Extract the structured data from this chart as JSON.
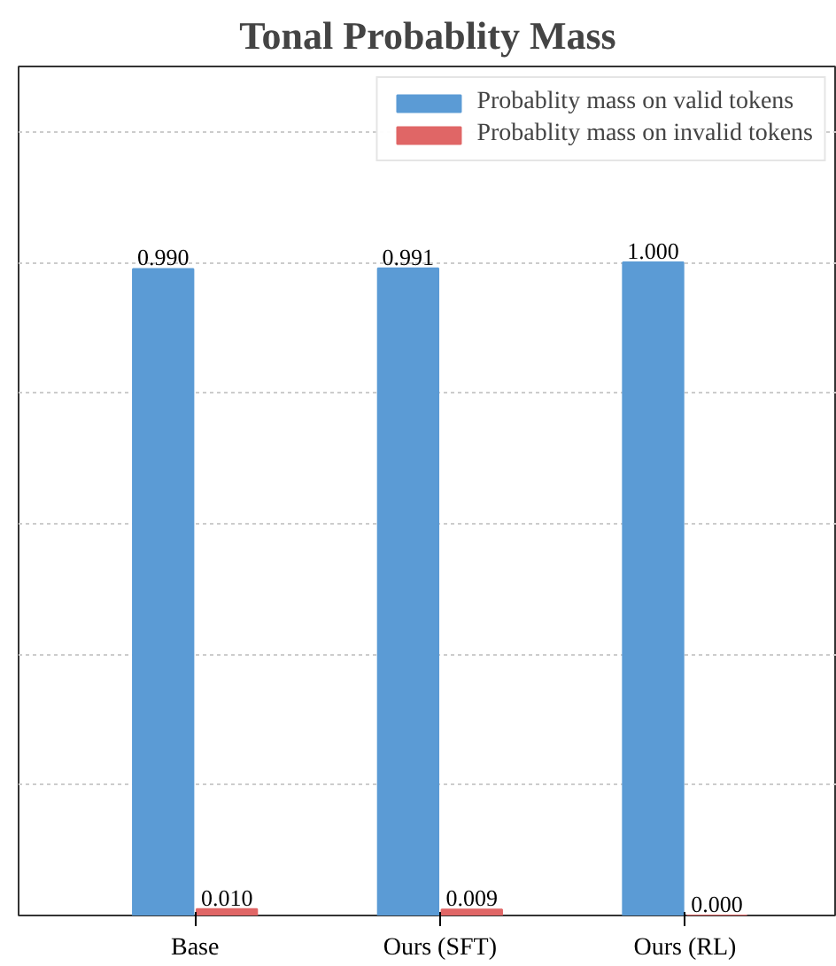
{
  "chart_data": {
    "type": "bar",
    "title": "Tonal Probablity Mass",
    "categories": [
      "Base",
      "Ours (SFT)",
      "Ours (RL)"
    ],
    "series": [
      {
        "name": "Probablity mass on valid tokens",
        "color": "#5b9bd5",
        "values": [
          0.99,
          0.991,
          1.0
        ],
        "value_labels": [
          "0.990",
          "0.991",
          "1.000"
        ]
      },
      {
        "name": "Probablity mass on invalid tokens",
        "color": "#e06666",
        "values": [
          0.01,
          0.009,
          0.0
        ],
        "value_labels": [
          "0.010",
          "0.009",
          "0.000"
        ]
      }
    ],
    "ylim": [
      0,
      1.3
    ],
    "yticks": [
      {
        "value": 0,
        "label": null
      },
      {
        "value": 0.2,
        "label": null
      },
      {
        "value": 0.4,
        "label": null
      },
      {
        "value": 0.6,
        "label": null
      },
      {
        "value": 0.8,
        "label": null
      },
      {
        "value": 1.0,
        "label": null
      },
      {
        "value": 1.2,
        "label": null
      }
    ],
    "tick_labels": "x",
    "grid": "y",
    "legend": "top right"
  }
}
